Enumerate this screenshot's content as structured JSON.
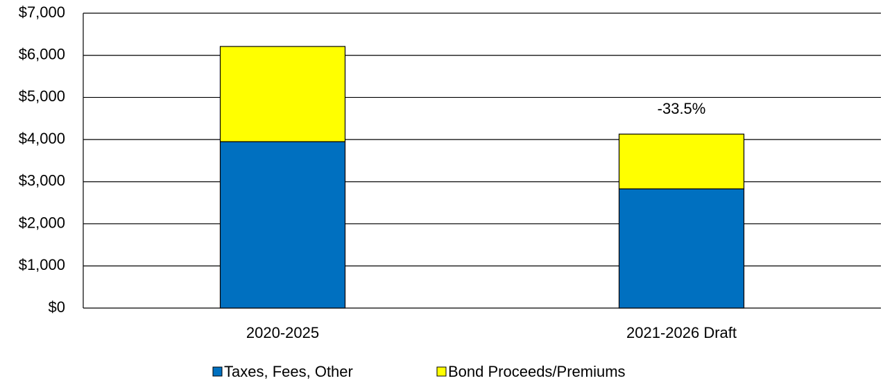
{
  "chart_data": {
    "type": "stacked-bar",
    "categories": [
      "2020-2025",
      "2021-2026 Draft"
    ],
    "series": [
      {
        "name": "Taxes, Fees, Other",
        "color": "#0070c0",
        "values": [
          3950,
          2830
        ]
      },
      {
        "name": "Bond Proceeds/Premiums",
        "color": "#ffff00",
        "values": [
          2260,
          1300
        ]
      }
    ],
    "annotation": "-33.5%",
    "ylim": [
      0,
      7000
    ],
    "yticks": [
      {
        "value": 0,
        "label": "$0"
      },
      {
        "value": 1000,
        "label": "$1,000"
      },
      {
        "value": 2000,
        "label": "$2,000"
      },
      {
        "value": 3000,
        "label": "$3,000"
      },
      {
        "value": 4000,
        "label": "$4,000"
      },
      {
        "value": 5000,
        "label": "$5,000"
      },
      {
        "value": 6000,
        "label": "$6,000"
      },
      {
        "value": 7000,
        "label": "$7,000"
      }
    ],
    "grid": true,
    "legend": "bottom"
  }
}
